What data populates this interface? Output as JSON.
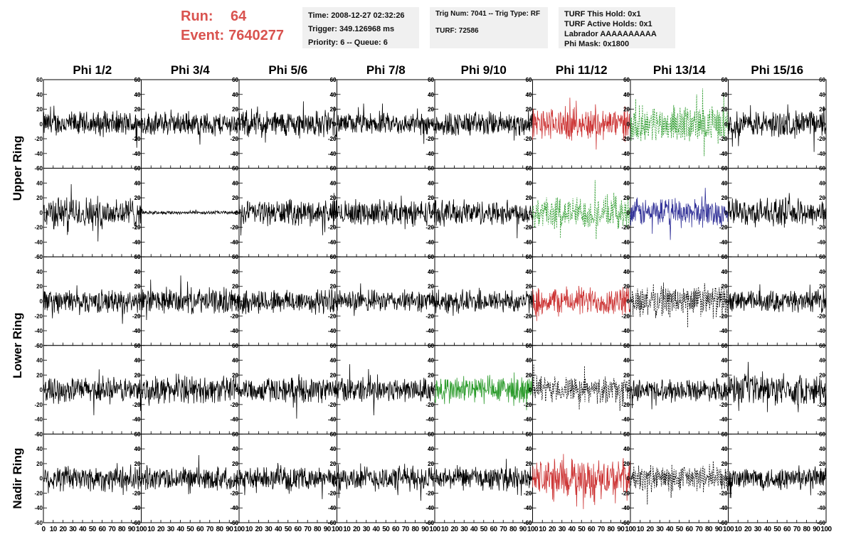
{
  "header": {
    "run_label": "Run:",
    "run_value": "64",
    "event_label": "Event:",
    "event_value": "7640277",
    "time": "Time: 2008-12-27 02:32:26",
    "trigger": "Trigger: 349.126968 ms",
    "priority": "Priority: 6 -- Queue: 6",
    "trig_num": "Trig Num: 7041 -- Trig Type: RF",
    "turf": "TURF: 72586",
    "turf_this_hold": "TURF This Hold: 0x1",
    "turf_active_holds": "TURF Active Holds: 0x1",
    "labrador": "Labrador AAAAAAAAAA",
    "phi_mask": "Phi Mask: 0x1800"
  },
  "chart_data": {
    "type": "line",
    "columns": [
      "Phi 1/2",
      "Phi 3/4",
      "Phi 5/6",
      "Phi 7/8",
      "Phi 9/10",
      "Phi 11/12",
      "Phi 13/14",
      "Phi 15/16"
    ],
    "rows": [
      "Upper Ring",
      "Lower Ring",
      "Nadir Ring"
    ],
    "xlim": [
      0,
      100
    ],
    "ylim": [
      -60,
      60
    ],
    "x_ticks": [
      0,
      10,
      20,
      30,
      40,
      50,
      60,
      70,
      80,
      90,
      100
    ],
    "x_tick_labels": [
      "0",
      "10",
      "20",
      "30",
      "40",
      "50",
      "60",
      "70",
      "80",
      "90",
      "100"
    ],
    "y_ticks": [
      60,
      40,
      20,
      0,
      -20,
      -40,
      -60
    ],
    "y_tick_labels": [
      "60",
      "40",
      "20",
      "0",
      "-20",
      "-40",
      "-60"
    ],
    "colors": {
      "default": "#000000",
      "red": "#cc3333",
      "green": "#2a9a2a",
      "blue": "#333399"
    },
    "panels": [
      [
        {
          "color": "default",
          "style": "solid",
          "amp": 14
        },
        {
          "color": "default",
          "style": "solid",
          "amp": 13
        },
        {
          "color": "default",
          "style": "solid",
          "amp": 15
        },
        {
          "color": "default",
          "style": "solid",
          "amp": 12
        },
        {
          "color": "default",
          "style": "solid",
          "amp": 14
        },
        {
          "color": "red",
          "style": "solid",
          "amp": 18
        },
        {
          "color": "green",
          "style": "dashed",
          "amp": 20
        },
        {
          "color": "default",
          "style": "solid",
          "amp": 15
        }
      ],
      [
        {
          "color": "default",
          "style": "solid",
          "amp": 18
        },
        {
          "color": "default",
          "style": "solid",
          "amp": 2
        },
        {
          "color": "default",
          "style": "solid",
          "amp": 14
        },
        {
          "color": "default",
          "style": "solid",
          "amp": 14
        },
        {
          "color": "default",
          "style": "solid",
          "amp": 14
        },
        {
          "color": "green",
          "style": "dashed",
          "amp": 18
        },
        {
          "color": "blue",
          "style": "solid",
          "amp": 16
        },
        {
          "color": "default",
          "style": "solid",
          "amp": 15
        }
      ],
      [
        {
          "color": "default",
          "style": "solid",
          "amp": 13
        },
        {
          "color": "default",
          "style": "solid",
          "amp": 14
        },
        {
          "color": "default",
          "style": "solid",
          "amp": 14
        },
        {
          "color": "default",
          "style": "solid",
          "amp": 12
        },
        {
          "color": "default",
          "style": "solid",
          "amp": 13
        },
        {
          "color": "red",
          "style": "solid",
          "amp": 16
        },
        {
          "color": "default",
          "style": "dashed",
          "amp": 18
        },
        {
          "color": "default",
          "style": "solid",
          "amp": 12
        }
      ],
      [
        {
          "color": "default",
          "style": "solid",
          "amp": 14
        },
        {
          "color": "default",
          "style": "solid",
          "amp": 15
        },
        {
          "color": "default",
          "style": "solid",
          "amp": 14
        },
        {
          "color": "default",
          "style": "solid",
          "amp": 14
        },
        {
          "color": "green",
          "style": "solid",
          "amp": 16
        },
        {
          "color": "default",
          "style": "dashed",
          "amp": 14
        },
        {
          "color": "default",
          "style": "solid",
          "amp": 12
        },
        {
          "color": "default",
          "style": "solid",
          "amp": 17
        }
      ],
      [
        {
          "color": "default",
          "style": "solid",
          "amp": 15
        },
        {
          "color": "default",
          "style": "solid",
          "amp": 13
        },
        {
          "color": "default",
          "style": "solid",
          "amp": 12
        },
        {
          "color": "default",
          "style": "solid",
          "amp": 14
        },
        {
          "color": "default",
          "style": "solid",
          "amp": 13
        },
        {
          "color": "red",
          "style": "solid",
          "amp": 22
        },
        {
          "color": "default",
          "style": "dashed",
          "amp": 15
        },
        {
          "color": "default",
          "style": "solid",
          "amp": 13
        }
      ]
    ]
  }
}
